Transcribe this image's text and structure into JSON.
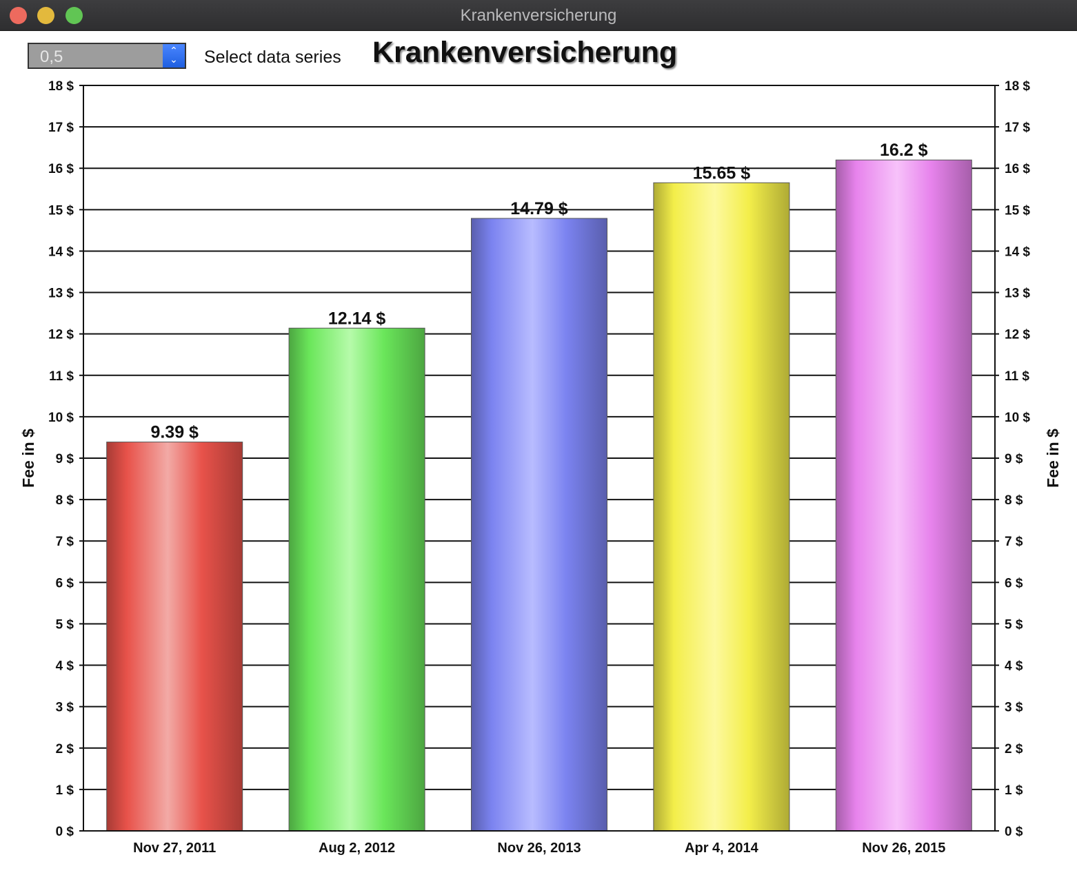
{
  "window": {
    "title": "Krankenversicherung"
  },
  "controls": {
    "series_value": "0,5",
    "series_label": "Select data series"
  },
  "chart_data": {
    "type": "bar",
    "title": "Krankenversicherung",
    "ylabel": "Fee in $",
    "ylabel_right": "Fee in $",
    "xlabel": "",
    "ylim": [
      0,
      18
    ],
    "y_ticks": [
      "0 $",
      "1 $",
      "2 $",
      "3 $",
      "4 $",
      "5 $",
      "6 $",
      "7 $",
      "8 $",
      "9 $",
      "10 $",
      "11 $",
      "12 $",
      "13 $",
      "14 $",
      "15 $",
      "16 $",
      "17 $",
      "18 $"
    ],
    "categories": [
      "Nov 27, 2011",
      "Aug 2, 2012",
      "Nov 26, 2013",
      "Apr 4, 2014",
      "Nov 26, 2015"
    ],
    "values": [
      9.39,
      12.14,
      14.79,
      15.65,
      16.2
    ],
    "value_labels": [
      "9.39 $",
      "12.14 $",
      "14.79 $",
      "15.65 $",
      "16.2 $"
    ],
    "grid": true,
    "bar_colors": [
      "#e8524a",
      "#6ae65a",
      "#7b83f0",
      "#f3ee4a",
      "#e783ec"
    ],
    "bar_highlights": [
      "#f2aaa6",
      "#b6fbaa",
      "#b8bcff",
      "#fdf9a0",
      "#f7c2fa"
    ]
  }
}
